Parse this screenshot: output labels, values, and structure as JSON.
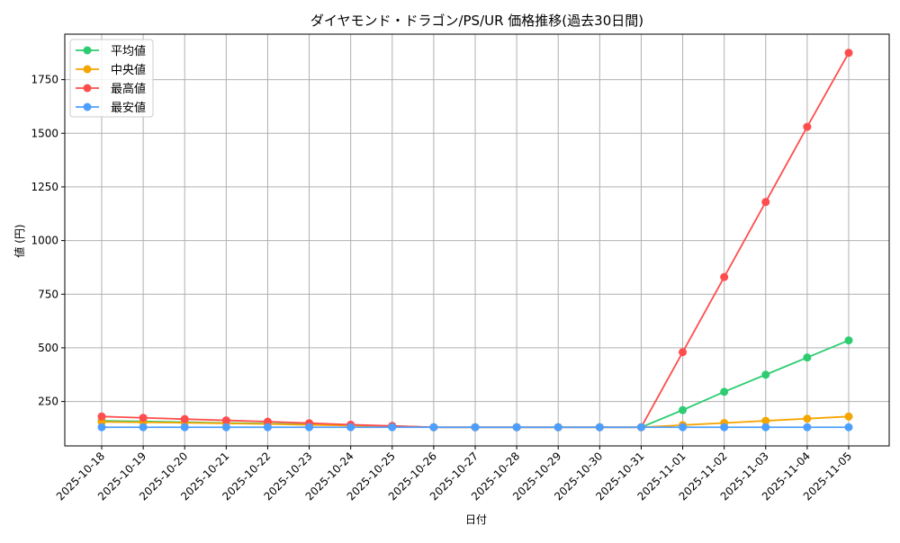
{
  "chart_data": {
    "type": "line",
    "title": "ダイヤモンド・ドラゴン/PS/UR 価格推移(過去30日間)",
    "xlabel": "日付",
    "ylabel": "値 (円)",
    "categories": [
      "2025-10-18",
      "2025-10-19",
      "2025-10-20",
      "2025-10-21",
      "2025-10-22",
      "2025-10-23",
      "2025-10-24",
      "2025-10-25",
      "2025-10-26",
      "2025-10-27",
      "2025-10-28",
      "2025-10-29",
      "2025-10-30",
      "2025-10-31",
      "2025-11-01",
      "2025-11-02",
      "2025-11-03",
      "2025-11-04",
      "2025-11-05"
    ],
    "yticks": [
      250,
      500,
      750,
      1000,
      1250,
      1500,
      1750
    ],
    "ylim": [
      43,
      1962
    ],
    "grid": true,
    "legend_position": "top-left",
    "series": [
      {
        "name": "平均値",
        "color": "#2ecc71",
        "values": [
          160,
          157,
          154,
          150,
          147,
          143,
          140,
          136,
          130,
          130,
          130,
          130,
          130,
          130,
          210,
          295,
          375,
          455,
          535
        ]
      },
      {
        "name": "中央値",
        "color": "#f5a500",
        "values": [
          155,
          153,
          151,
          148,
          145,
          141,
          138,
          135,
          130,
          130,
          130,
          130,
          130,
          130,
          140,
          150,
          160,
          170,
          180
        ]
      },
      {
        "name": "最高値",
        "color": "#ff4d4d",
        "values": [
          180,
          174,
          168,
          162,
          156,
          149,
          142,
          136,
          130,
          130,
          130,
          130,
          130,
          130,
          480,
          830,
          1180,
          1530,
          1875
        ]
      },
      {
        "name": "最安値",
        "color": "#4d9fff",
        "values": [
          130,
          130,
          130,
          130,
          130,
          130,
          130,
          130,
          130,
          130,
          130,
          130,
          130,
          130,
          130,
          130,
          130,
          130,
          130
        ]
      }
    ]
  }
}
